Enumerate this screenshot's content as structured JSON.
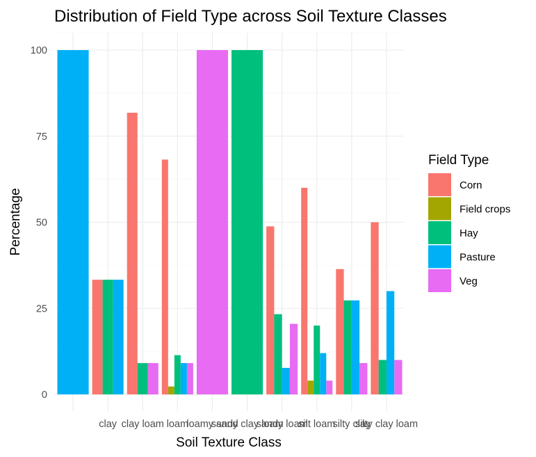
{
  "chart_data": {
    "type": "bar",
    "title": "Distribution of Field Type across Soil Texture Classes",
    "xlabel": "Soil Texture Class",
    "ylabel": "Percentage",
    "ylim": [
      0,
      105
    ],
    "yticks": [
      0,
      25,
      50,
      75,
      100
    ],
    "grid": true,
    "legend_position": "right",
    "legend_title": "Field Type",
    "categories": [
      "",
      "clay",
      "clay loam",
      "loam",
      "loamy sand",
      "sandy clay loam",
      "sandy loam",
      "silt loam",
      "silty clay",
      "silty clay loam"
    ],
    "series": [
      {
        "name": "Corn",
        "color": "#F8766D",
        "values": [
          null,
          33.3,
          81.8,
          68.2,
          null,
          null,
          48.8,
          60.0,
          36.4,
          50.0
        ]
      },
      {
        "name": "Field crops",
        "color": "#A3A500",
        "values": [
          null,
          null,
          null,
          2.3,
          null,
          null,
          null,
          4.0,
          null,
          null
        ]
      },
      {
        "name": "Hay",
        "color": "#00BF7D",
        "values": [
          null,
          33.3,
          9.1,
          11.4,
          null,
          100,
          23.3,
          20.0,
          27.3,
          10.0
        ]
      },
      {
        "name": "Pasture",
        "color": "#00B0F6",
        "values": [
          100,
          33.3,
          null,
          9.1,
          null,
          null,
          7.7,
          12.0,
          27.3,
          30.0
        ]
      },
      {
        "name": "Veg",
        "color": "#E76BF3",
        "values": [
          null,
          null,
          9.1,
          9.1,
          100,
          null,
          20.5,
          4.0,
          9.1,
          10.0
        ]
      }
    ]
  }
}
